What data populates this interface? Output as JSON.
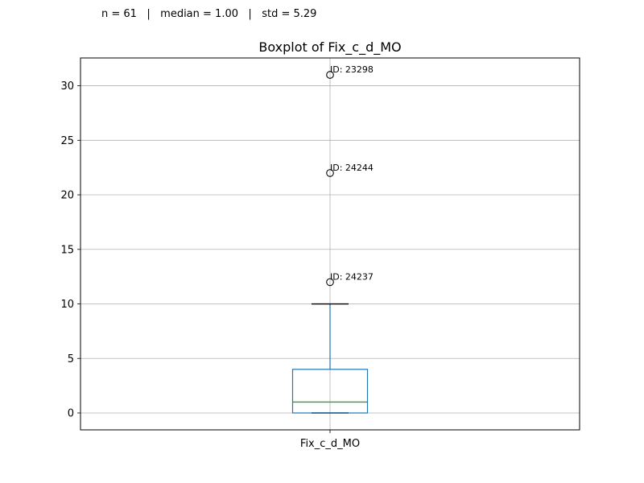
{
  "stats": {
    "n": "n = 61",
    "median": "median = 1.00",
    "std": "std = 5.29",
    "separator": "|"
  },
  "chart_data": {
    "type": "box",
    "title": "Boxplot of Fix_c_d_MO",
    "categories": [
      "Fix_c_d_MO"
    ],
    "xlabel": "",
    "ylabel": "",
    "ylim": [
      -1.55,
      32.55
    ],
    "yticks": [
      0,
      5,
      10,
      15,
      20,
      25,
      30
    ],
    "grid": true,
    "legend": "none",
    "box": {
      "whisker_low": 0,
      "q1": 0,
      "median": 1,
      "q3": 4,
      "whisker_high": 10
    },
    "outliers": [
      {
        "value": 31,
        "label": "ID: 23298"
      },
      {
        "value": 22,
        "label": "ID: 24244"
      },
      {
        "value": 12,
        "label": "ID: 24237"
      }
    ],
    "colors": {
      "box": "#1f77b4",
      "median": "#2ca02c",
      "whisker": "#1f77b4",
      "cap": "#000000",
      "grid": "#b0b0b0",
      "outlier": "#000000"
    }
  }
}
